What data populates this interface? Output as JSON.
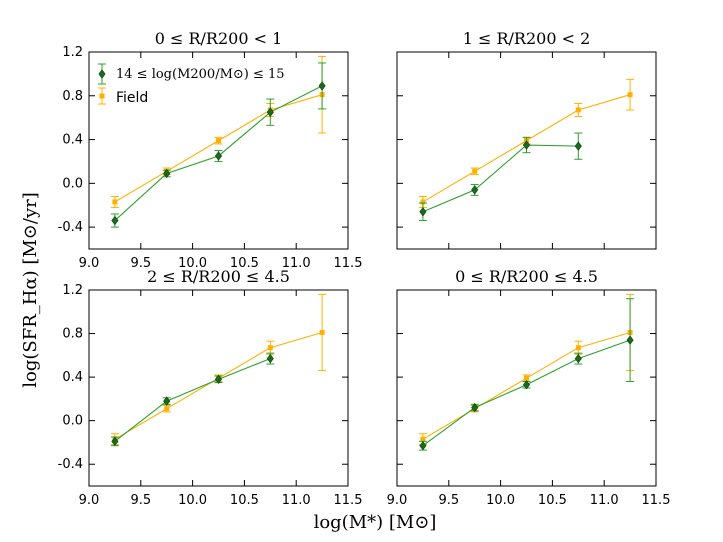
{
  "colors": {
    "cluster": "#1a6b1a",
    "cluster_line": "#2ca02c",
    "field": "#ffb000"
  },
  "y_label": "log(SFR_Hα) [M⊙/yr]",
  "x_label": "log(M*) [M⊙]",
  "legend": {
    "cluster": "14 ≤ log(M200/M⊙) ≤ 15",
    "field": "Field"
  },
  "chart_data": [
    {
      "type": "line",
      "title": "0 ≤ R/R200 < 1",
      "xlim": [
        9.0,
        11.5
      ],
      "ylim": [
        -0.6,
        1.2
      ],
      "xticks": [
        "9.0",
        "9.5",
        "10.0",
        "10.5",
        "11.0",
        "11.5"
      ],
      "yticks": [
        "-0.4",
        "0.0",
        "0.4",
        "0.8",
        "1.2"
      ],
      "series": [
        {
          "name": "14 ≤ log(M200/M⊙) ≤ 15",
          "marker": "diamond",
          "x": [
            9.25,
            9.75,
            10.25,
            10.75,
            11.25
          ],
          "y": [
            -0.34,
            0.09,
            0.25,
            0.65,
            0.89
          ],
          "err": [
            0.06,
            0.03,
            0.05,
            0.12,
            0.21
          ]
        },
        {
          "name": "Field",
          "marker": "square",
          "x": [
            9.25,
            9.75,
            10.25,
            10.75,
            11.25
          ],
          "y": [
            -0.17,
            0.11,
            0.39,
            0.67,
            0.81
          ],
          "err": [
            0.05,
            0.03,
            0.03,
            0.06,
            0.35
          ]
        }
      ]
    },
    {
      "type": "line",
      "title": "1 ≤ R/R200 < 2",
      "xlim": [
        9.0,
        11.5
      ],
      "ylim": [
        -0.6,
        1.2
      ],
      "xticks": [],
      "yticks": [],
      "series": [
        {
          "name": "14 ≤ log(M200/M⊙) ≤ 15",
          "marker": "diamond",
          "x": [
            9.25,
            9.75,
            10.25,
            10.75
          ],
          "y": [
            -0.26,
            -0.06,
            0.35,
            0.34
          ],
          "err": [
            0.08,
            0.05,
            0.07,
            0.12
          ]
        },
        {
          "name": "Field",
          "marker": "square",
          "x": [
            9.25,
            9.75,
            10.25,
            10.75,
            11.25
          ],
          "y": [
            -0.17,
            0.11,
            0.39,
            0.67,
            0.81
          ],
          "err": [
            0.05,
            0.03,
            0.03,
            0.06,
            0.14
          ]
        }
      ]
    },
    {
      "type": "line",
      "title": "2 ≤ R/R200 ≤ 4.5",
      "xlim": [
        9.0,
        11.5
      ],
      "ylim": [
        -0.6,
        1.2
      ],
      "xticks": [
        "9.0",
        "9.5",
        "10.0",
        "10.5",
        "11.0",
        "11.5"
      ],
      "yticks": [
        "-0.4",
        "0.0",
        "0.4",
        "0.8",
        "1.2"
      ],
      "series": [
        {
          "name": "14 ≤ log(M200/M⊙) ≤ 15",
          "marker": "diamond",
          "x": [
            9.25,
            9.75,
            10.25,
            10.75
          ],
          "y": [
            -0.19,
            0.18,
            0.38,
            0.57
          ],
          "err": [
            0.04,
            0.03,
            0.03,
            0.05
          ]
        },
        {
          "name": "Field",
          "marker": "square",
          "x": [
            9.25,
            9.75,
            10.25,
            10.75,
            11.25
          ],
          "y": [
            -0.17,
            0.11,
            0.39,
            0.67,
            0.81
          ],
          "err": [
            0.05,
            0.03,
            0.03,
            0.06,
            0.35
          ]
        }
      ]
    },
    {
      "type": "line",
      "title": "0 ≤ R/R200 ≤ 4.5",
      "xlim": [
        9.0,
        11.5
      ],
      "ylim": [
        -0.6,
        1.2
      ],
      "xticks": [
        "9.0",
        "9.5",
        "10.0",
        "10.5",
        "11.0",
        "11.5"
      ],
      "yticks": [],
      "series": [
        {
          "name": "14 ≤ log(M200/M⊙) ≤ 15",
          "marker": "diamond",
          "x": [
            9.25,
            9.75,
            10.25,
            10.75,
            11.25
          ],
          "y": [
            -0.23,
            0.12,
            0.33,
            0.57,
            0.74
          ],
          "err": [
            0.04,
            0.03,
            0.03,
            0.05,
            0.38
          ]
        },
        {
          "name": "Field",
          "marker": "square",
          "x": [
            9.25,
            9.75,
            10.25,
            10.75,
            11.25
          ],
          "y": [
            -0.17,
            0.11,
            0.39,
            0.67,
            0.81
          ],
          "err": [
            0.05,
            0.03,
            0.03,
            0.06,
            0.35
          ]
        }
      ]
    }
  ]
}
